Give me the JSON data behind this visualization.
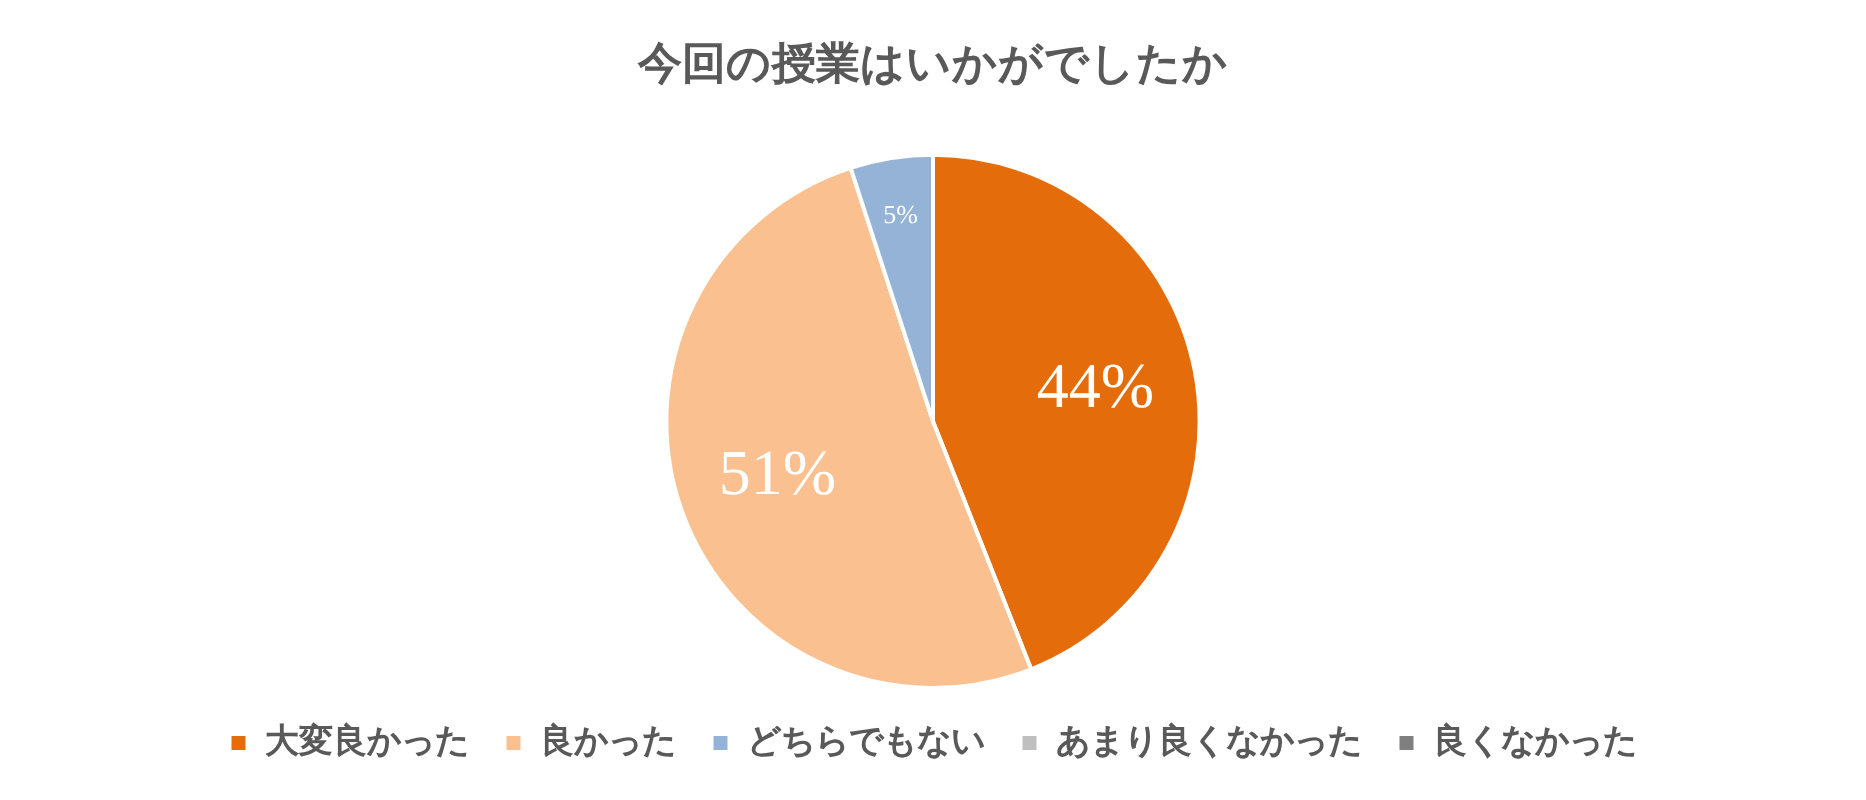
{
  "chart_data": {
    "type": "pie",
    "title": "今回の授業はいかがでしたか",
    "categories": [
      "大変良かった",
      "良かった",
      "どちらでもない",
      "あまり良くなかった",
      "良くなかった"
    ],
    "values": [
      44,
      51,
      5,
      0,
      0
    ],
    "colors": [
      "#e46c0a",
      "#fac090",
      "#95b3d7",
      "#bfbfbf",
      "#7f7f7f"
    ],
    "value_labels": [
      "44%",
      "51%",
      "5%",
      null,
      null
    ],
    "legend": "bottom"
  }
}
